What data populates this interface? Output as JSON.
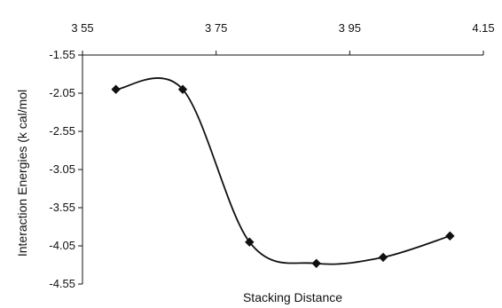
{
  "chart_data": {
    "type": "line",
    "title": "",
    "xlabel": "Stacking Distance",
    "ylabel": "Interaction Energies (k cal/mol",
    "x_ticks": [
      "3 55",
      "3 75",
      "3 95",
      "4.15"
    ],
    "y_ticks": [
      "-1.55",
      "-2.05",
      "-2.55",
      "-3.05",
      "-3.55",
      "-4.05",
      "-4.55"
    ],
    "xlim": [
      3.55,
      4.15
    ],
    "ylim": [
      -4.55,
      -1.55
    ],
    "x_axis_position": "top",
    "smooth": true,
    "grid": false,
    "legend": "none",
    "series": [
      {
        "x": [
          3.6,
          3.7,
          3.8,
          3.9,
          4.0,
          4.1
        ],
        "y": [
          -2.0,
          -2.0,
          -4.0,
          -4.28,
          -4.2,
          -3.92
        ],
        "color": "#111111",
        "marker": "diamond"
      }
    ]
  }
}
